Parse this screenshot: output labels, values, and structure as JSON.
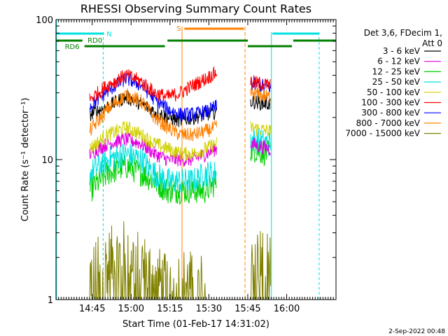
{
  "chart_data": {
    "type": "line",
    "title": "RHESSI Observing Summary Count Rates",
    "xlabel": "Start Time (01-Feb-17 14:31:02)",
    "ylabel": "Count Rate (s⁻¹ detector⁻¹)",
    "yscale": "log",
    "ylim": [
      1,
      100
    ],
    "xlim_minutes_after_start": [
      0,
      108
    ],
    "x_ticks": [
      {
        "label": "14:45",
        "minute": 13.97
      },
      {
        "label": "15:00",
        "minute": 28.97
      },
      {
        "label": "15:15",
        "minute": 43.97
      },
      {
        "label": "15:30",
        "minute": 58.97
      },
      {
        "label": "15:45",
        "minute": 73.97
      },
      {
        "label": "16:00",
        "minute": 88.97
      }
    ],
    "y_ticks": [
      {
        "label": "1",
        "value": 1
      },
      {
        "label": "10",
        "value": 10
      },
      {
        "label": "100",
        "value": 100
      }
    ],
    "legend_header": [
      "Det 3,6, FDecim 1,",
      "Att 0"
    ],
    "legend_position": "right",
    "series": [
      {
        "name": "3 - 6 keV",
        "color": "#000000",
        "values_at_minutes": [
          [
            13,
            21
          ],
          [
            20,
            24
          ],
          [
            27,
            28
          ],
          [
            33,
            25
          ],
          [
            38,
            22
          ],
          [
            43,
            20
          ],
          [
            48,
            19
          ],
          [
            53,
            20
          ],
          [
            58,
            21
          ],
          [
            62,
            22
          ],
          [
            75,
            26
          ],
          [
            82,
            25
          ]
        ]
      },
      {
        "name": "6 - 12 keV",
        "color": "#e000e0",
        "values_at_minutes": [
          [
            13,
            11
          ],
          [
            20,
            13
          ],
          [
            27,
            14
          ],
          [
            33,
            13
          ],
          [
            38,
            11
          ],
          [
            43,
            10
          ],
          [
            48,
            10
          ],
          [
            53,
            10
          ],
          [
            58,
            11
          ],
          [
            62,
            12
          ],
          [
            75,
            13
          ],
          [
            82,
            12
          ]
        ]
      },
      {
        "name": "12 - 25 keV",
        "color": "#00d000",
        "values_at_minutes": [
          [
            13,
            6
          ],
          [
            20,
            8
          ],
          [
            27,
            9
          ],
          [
            33,
            8
          ],
          [
            38,
            7
          ],
          [
            43,
            6
          ],
          [
            48,
            6
          ],
          [
            53,
            6
          ],
          [
            58,
            6
          ],
          [
            62,
            7
          ],
          [
            75,
            12
          ],
          [
            82,
            11
          ]
        ]
      },
      {
        "name": "25 - 50 keV",
        "color": "#00e0e0",
        "values_at_minutes": [
          [
            13,
            8
          ],
          [
            20,
            10
          ],
          [
            27,
            11
          ],
          [
            33,
            10
          ],
          [
            38,
            8
          ],
          [
            43,
            7
          ],
          [
            48,
            7
          ],
          [
            53,
            7
          ],
          [
            58,
            8
          ],
          [
            62,
            8
          ],
          [
            75,
            14
          ],
          [
            82,
            13
          ]
        ]
      },
      {
        "name": "50 - 100 keV",
        "color": "#d0d000",
        "values_at_minutes": [
          [
            13,
            12
          ],
          [
            20,
            15
          ],
          [
            27,
            17
          ],
          [
            33,
            15
          ],
          [
            38,
            13
          ],
          [
            43,
            12
          ],
          [
            48,
            11
          ],
          [
            53,
            11
          ],
          [
            58,
            12
          ],
          [
            62,
            13
          ],
          [
            75,
            17
          ],
          [
            82,
            16
          ]
        ]
      },
      {
        "name": "100 - 300 keV",
        "color": "#ff0000",
        "values_at_minutes": [
          [
            13,
            27
          ],
          [
            20,
            34
          ],
          [
            27,
            40
          ],
          [
            33,
            36
          ],
          [
            38,
            30
          ],
          [
            43,
            28
          ],
          [
            48,
            30
          ],
          [
            53,
            34
          ],
          [
            58,
            38
          ],
          [
            62,
            42
          ],
          [
            75,
            36
          ],
          [
            82,
            34
          ]
        ]
      },
      {
        "name": "300 - 800 keV",
        "color": "#0000ff",
        "values_at_minutes": [
          [
            13,
            24
          ],
          [
            20,
            31
          ],
          [
            27,
            38
          ],
          [
            33,
            34
          ],
          [
            38,
            27
          ],
          [
            43,
            23
          ],
          [
            48,
            21
          ],
          [
            53,
            21
          ],
          [
            58,
            22
          ],
          [
            62,
            24
          ],
          [
            75,
            35
          ],
          [
            82,
            33
          ]
        ]
      },
      {
        "name": "800 - 7000 keV",
        "color": "#ff8000",
        "values_at_minutes": [
          [
            13,
            16
          ],
          [
            20,
            23
          ],
          [
            27,
            29
          ],
          [
            33,
            26
          ],
          [
            38,
            20
          ],
          [
            43,
            17
          ],
          [
            48,
            15
          ],
          [
            53,
            15
          ],
          [
            58,
            16
          ],
          [
            62,
            17
          ],
          [
            75,
            30
          ],
          [
            82,
            28
          ]
        ]
      },
      {
        "name": "7000 - 15000 keV",
        "color": "#808000",
        "values_at_minutes": [
          [
            13,
            1.5
          ],
          [
            20,
            1.9
          ],
          [
            27,
            2.2
          ],
          [
            33,
            1.8
          ],
          [
            38,
            1.5
          ],
          [
            43,
            1.2
          ],
          [
            48,
            1.4
          ],
          [
            53,
            1.3
          ],
          [
            58,
            1.2
          ],
          [
            75,
            2.3
          ],
          [
            82,
            1.8
          ]
        ]
      }
    ],
    "flags": [
      {
        "label": "N",
        "color": "#00e0e0"
      },
      {
        "label": "S",
        "color": "#ff8000"
      },
      {
        "label": "RD0",
        "color": "#008000"
      },
      {
        "label": "RD6",
        "color": "#008000"
      }
    ]
  },
  "footer": {
    "date_stamp": "2-Sep-2022 00:48"
  }
}
